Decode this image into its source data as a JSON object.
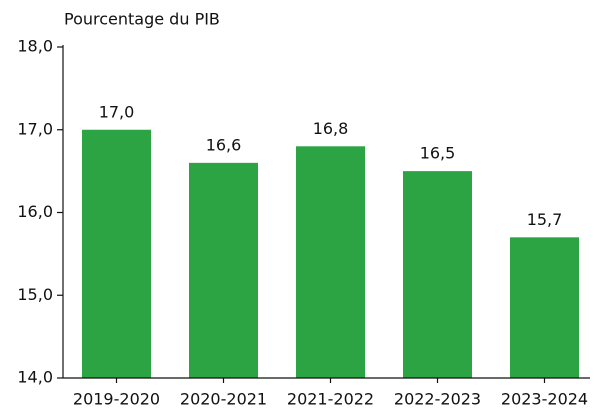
{
  "chart_data": {
    "type": "bar",
    "title": "Pourcentage du PIB",
    "categories": [
      "2019-2020",
      "2020-2021",
      "2021-2022",
      "2022-2023",
      "2023-2024"
    ],
    "values": [
      17.0,
      16.6,
      16.8,
      16.5,
      15.7
    ],
    "value_labels": [
      "17,0",
      "16,6",
      "16,8",
      "16,5",
      "15,7"
    ],
    "color": "#2ca444",
    "ylim": [
      14,
      18
    ],
    "yticks": [
      {
        "value": 14,
        "label": "14,0"
      },
      {
        "value": 15,
        "label": "15,0"
      },
      {
        "value": 16,
        "label": "16,0"
      },
      {
        "value": 17,
        "label": "17,0"
      },
      {
        "value": 18,
        "label": "18,0"
      }
    ],
    "grid": false
  }
}
